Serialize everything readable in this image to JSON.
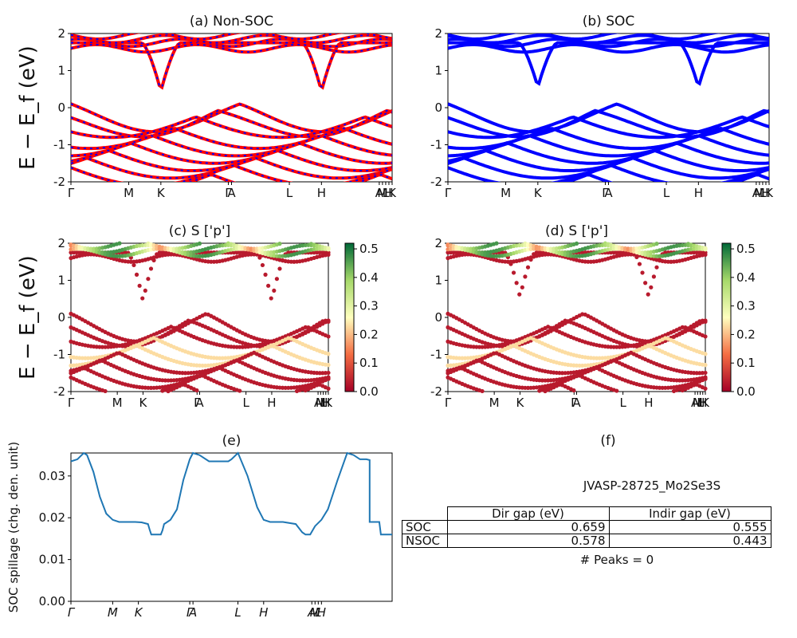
{
  "figure": {
    "ylabel": "E − E_f (eV)",
    "f_title": "(f)",
    "material": "JVASP-28725_Mo2Se3S",
    "peaks": "# Peaks = 0"
  },
  "table": {
    "headers": [
      "Dir gap (eV)",
      "Indir gap (eV)"
    ],
    "rows": [
      {
        "label": "SOC",
        "dir": "0.659",
        "indir": "0.555"
      },
      {
        "label": "NSOC",
        "dir": "0.578",
        "indir": "0.443"
      }
    ]
  },
  "chart_data": [
    {
      "id": "a",
      "type": "line",
      "title": "(a) Non-SOC",
      "ylim": [
        -2,
        2
      ],
      "yticks": [
        -2,
        -1,
        0,
        1,
        2
      ],
      "xticks": [
        "Γ",
        "M",
        "K",
        "Γ",
        "A",
        "L",
        "H",
        "A",
        "M",
        "L",
        "H",
        "K"
      ],
      "xtick_pos": [
        0,
        0.18,
        0.28,
        0.49,
        0.5,
        0.68,
        0.78,
        0.96,
        0.97,
        0.98,
        0.99,
        1.0
      ],
      "colors": [
        "#ff0000",
        "#0000ff"
      ],
      "conduction_min": 0.443,
      "valence_max": 0.0
    },
    {
      "id": "b",
      "type": "line",
      "title": "(b) SOC",
      "ylim": [
        -2,
        2
      ],
      "yticks": [
        -2,
        -1,
        0,
        1,
        2
      ],
      "xticks": [
        "Γ",
        "M",
        "K",
        "Γ",
        "A",
        "L",
        "H",
        "A",
        "M",
        "L",
        "H",
        "K"
      ],
      "xtick_pos": [
        0,
        0.18,
        0.28,
        0.49,
        0.5,
        0.68,
        0.78,
        0.96,
        0.97,
        0.98,
        0.99,
        1.0
      ],
      "colors": [
        "#0000ff"
      ],
      "conduction_min": 0.555,
      "valence_max": 0.0
    },
    {
      "id": "c",
      "type": "scatter",
      "title": "(c)  S ['p']",
      "ylim": [
        -2,
        2
      ],
      "yticks": [
        -2,
        -1,
        0,
        1,
        2
      ],
      "xticks": [
        "Γ",
        "M",
        "K",
        "Γ",
        "A",
        "L",
        "H",
        "A",
        "M",
        "L",
        "H",
        "K"
      ],
      "xtick_pos": [
        0,
        0.18,
        0.28,
        0.49,
        0.5,
        0.68,
        0.78,
        0.96,
        0.97,
        0.98,
        0.99,
        1.0
      ],
      "colorbar": {
        "min": 0.0,
        "max": 0.5,
        "ticks": [
          "0.0",
          "0.1",
          "0.2",
          "0.3",
          "0.4",
          "0.5"
        ],
        "colormap": "RdYlGn"
      }
    },
    {
      "id": "d",
      "type": "scatter",
      "title": "(d) S ['p']",
      "ylim": [
        -2,
        2
      ],
      "yticks": [
        -2,
        -1,
        0,
        1,
        2
      ],
      "xticks": [
        "Γ",
        "M",
        "K",
        "Γ",
        "A",
        "L",
        "H",
        "A",
        "M",
        "L",
        "H",
        "K"
      ],
      "xtick_pos": [
        0,
        0.18,
        0.28,
        0.49,
        0.5,
        0.68,
        0.78,
        0.96,
        0.97,
        0.98,
        0.99,
        1.0
      ],
      "colorbar": {
        "min": 0.0,
        "max": 0.5,
        "ticks": [
          "0.0",
          "0.1",
          "0.2",
          "0.3",
          "0.4",
          "0.5"
        ],
        "colormap": "RdYlGn"
      }
    },
    {
      "id": "e",
      "type": "line",
      "title": "(e)",
      "ylabel": "SOC spillage (chg. den. unit)",
      "ylim": [
        0,
        0.0355
      ],
      "yticks": [
        "0.00",
        "0.01",
        "0.02",
        "0.03"
      ],
      "xticks": [
        "Γ",
        "M",
        "K",
        "Γ",
        "A",
        "L",
        "H",
        "A",
        "M",
        "L",
        "H"
      ],
      "xtick_pos": [
        0,
        0.13,
        0.21,
        0.37,
        0.38,
        0.52,
        0.6,
        0.75,
        0.76,
        0.77,
        0.78
      ],
      "color": "#1f77b4",
      "x": [
        0,
        0.02,
        0.04,
        0.05,
        0.07,
        0.09,
        0.11,
        0.13,
        0.15,
        0.17,
        0.2,
        0.22,
        0.24,
        0.245,
        0.25,
        0.28,
        0.285,
        0.29,
        0.3,
        0.31,
        0.33,
        0.35,
        0.37,
        0.38,
        0.4,
        0.43,
        0.45,
        0.47,
        0.49,
        0.5,
        0.52,
        0.55,
        0.58,
        0.6,
        0.62,
        0.64,
        0.65,
        0.66,
        0.7,
        0.72,
        0.73,
        0.745,
        0.76,
        0.78,
        0.8,
        0.83,
        0.86,
        0.88,
        0.9,
        0.91,
        0.92,
        0.93,
        0.93,
        0.96,
        0.965,
        1.0
      ],
      "values": [
        0.0335,
        0.034,
        0.0355,
        0.035,
        0.031,
        0.025,
        0.021,
        0.0195,
        0.019,
        0.019,
        0.019,
        0.0189,
        0.0185,
        0.0172,
        0.016,
        0.016,
        0.017,
        0.0185,
        0.019,
        0.0195,
        0.022,
        0.029,
        0.034,
        0.0355,
        0.035,
        0.0335,
        0.0335,
        0.0335,
        0.0335,
        0.034,
        0.0355,
        0.03,
        0.0225,
        0.0195,
        0.019,
        0.019,
        0.019,
        0.019,
        0.0185,
        0.0165,
        0.016,
        0.016,
        0.018,
        0.0195,
        0.022,
        0.029,
        0.0355,
        0.035,
        0.034,
        0.034,
        0.034,
        0.0338,
        0.019,
        0.019,
        0.016,
        0.016
      ]
    }
  ]
}
